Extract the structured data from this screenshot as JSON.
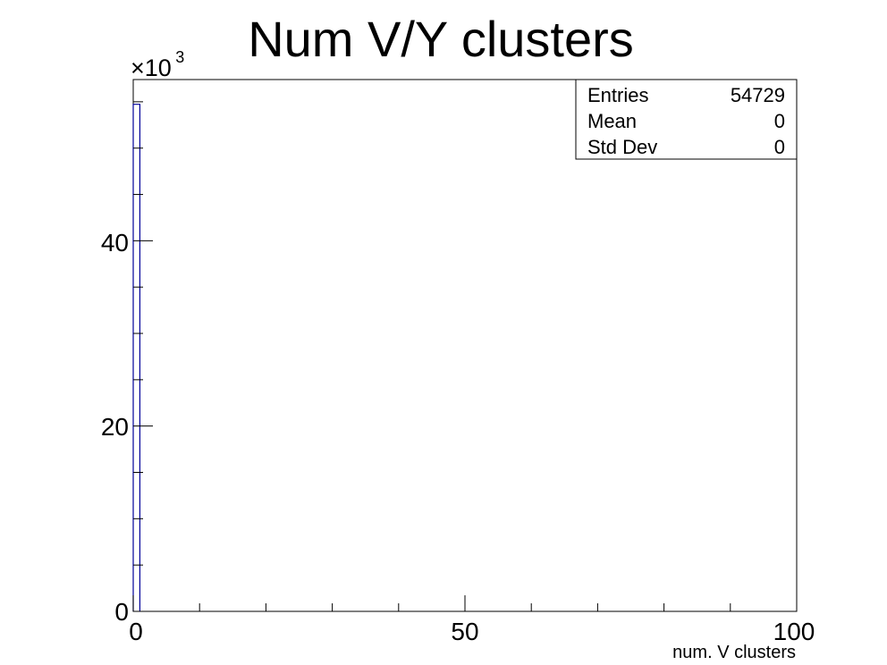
{
  "chart_data": {
    "type": "bar",
    "title": "Num V/Y clusters",
    "xlabel": "num. V clusters",
    "ylabel": "",
    "xlim": [
      0,
      100
    ],
    "ylim": [
      0,
      57.4
    ],
    "y_multiplier": {
      "base": "×10",
      "exponent": "3"
    },
    "x_ticks": [
      "0",
      "50",
      "100"
    ],
    "y_ticks": [
      "0",
      "20",
      "40"
    ],
    "bins": [
      {
        "x_low": 0,
        "x_high": 1,
        "value": 54.729
      }
    ],
    "series_color": "#000099",
    "stats": {
      "entries_label": "Entries",
      "entries_value": "54729",
      "mean_label": "Mean",
      "mean_value": "0",
      "std_label": "Std Dev",
      "std_value": "0"
    }
  }
}
